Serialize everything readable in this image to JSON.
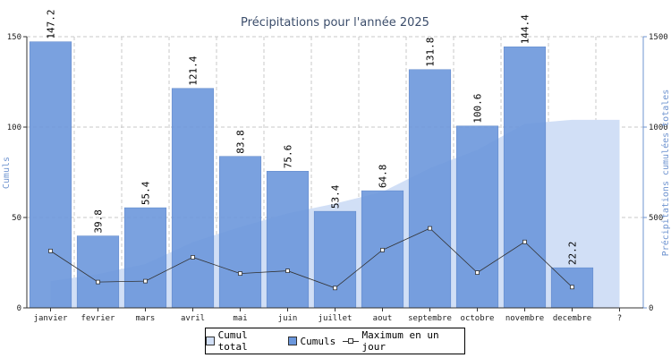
{
  "chart_data": {
    "type": "bar",
    "title": "Précipitations pour l'année 2025",
    "ylabel": "Cumuls",
    "y2label": "Précipitations cumulées totales",
    "categories": [
      "janvier",
      "fevrier",
      "mars",
      "avril",
      "mai",
      "juin",
      "juillet",
      "aout",
      "septembre",
      "octobre",
      "novembre",
      "decembre",
      "?"
    ],
    "ylim": [
      0,
      150
    ],
    "y2lim": [
      0,
      1500
    ],
    "yticks": [
      "0",
      "50",
      "100",
      "150"
    ],
    "y2ticks": [
      "0",
      "500",
      "1000",
      "1500"
    ],
    "grid": true,
    "legend_position": "bottom",
    "series": [
      {
        "name": "Cumul total",
        "type": "area",
        "axis": "right",
        "color": "#d1dff6",
        "values": [
          147.2,
          187.0,
          242.4,
          363.8,
          447.6,
          523.2,
          576.6,
          641.4,
          773.2,
          873.8,
          1018.2,
          1040.4,
          1040.4
        ]
      },
      {
        "name": "Cumuls",
        "type": "bar",
        "axis": "left",
        "color": "#6b97dc",
        "values": [
          147.2,
          39.8,
          55.4,
          121.4,
          83.8,
          75.6,
          53.4,
          64.8,
          131.8,
          100.6,
          144.4,
          22.2,
          null
        ]
      },
      {
        "name": "Maximum en un jour",
        "type": "line",
        "axis": "left",
        "color": "#333333",
        "values": [
          31.5,
          14.3,
          14.8,
          28,
          19,
          20.5,
          11,
          32,
          44,
          19.5,
          36.5,
          11.5,
          null
        ]
      }
    ],
    "data_labels": [
      "147.2",
      "39.8",
      "55.4",
      "121.4",
      "83.8",
      "75.6",
      "53.4",
      "64.8",
      "131.8",
      "100.6",
      "144.4",
      "22.2",
      ""
    ]
  },
  "legend": {
    "total": "Cumul total",
    "cumuls": "Cumuls",
    "max": "Maximum en un jour"
  }
}
